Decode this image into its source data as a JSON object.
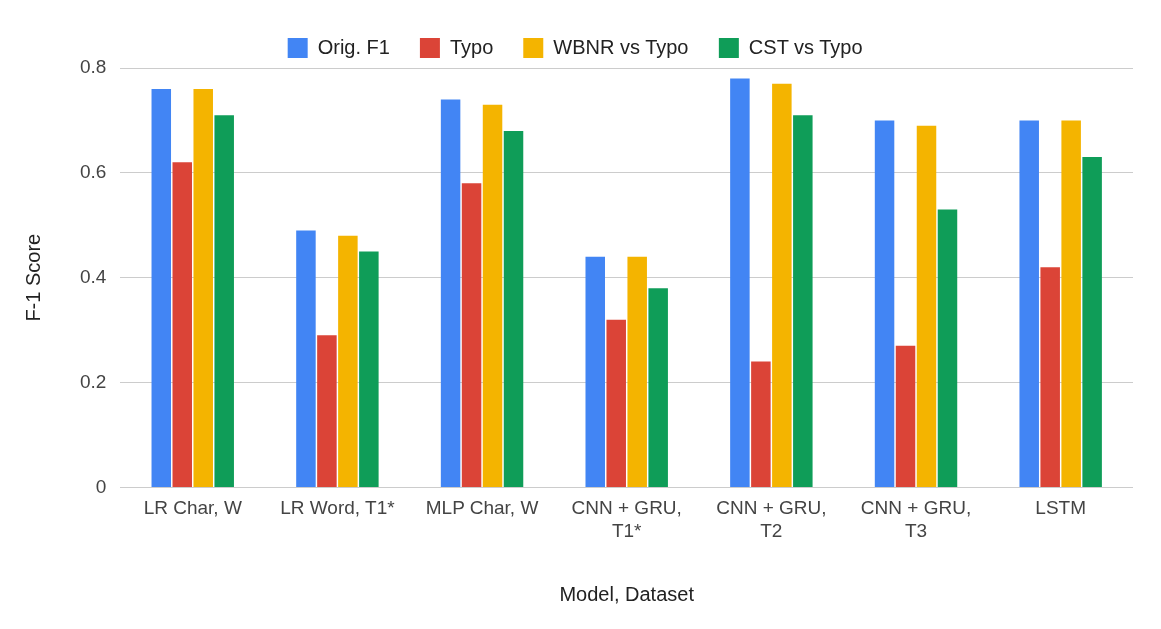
{
  "chart_data": {
    "type": "bar",
    "xlabel": "Model, Dataset",
    "ylabel": "F-1 Score",
    "categories": [
      "LR Char, W",
      "LR Word, T1*",
      "MLP Char, W",
      "CNN + GRU, T1*",
      "CNN + GRU, T2",
      "CNN + GRU, T3",
      "LSTM"
    ],
    "series": [
      {
        "name": "Orig. F1",
        "color": "#4285f4",
        "values": [
          0.76,
          0.49,
          0.74,
          0.44,
          0.78,
          0.7,
          0.7
        ]
      },
      {
        "name": "Typo",
        "color": "#db4437",
        "values": [
          0.62,
          0.29,
          0.58,
          0.32,
          0.24,
          0.27,
          0.42
        ]
      },
      {
        "name": "WBNR vs Typo",
        "color": "#f4b400",
        "values": [
          0.76,
          0.48,
          0.73,
          0.44,
          0.77,
          0.69,
          0.7
        ]
      },
      {
        "name": "CST vs Typo",
        "color": "#0f9d58",
        "values": [
          0.71,
          0.45,
          0.68,
          0.38,
          0.71,
          0.53,
          0.63
        ]
      }
    ],
    "ylim": [
      0,
      0.8
    ],
    "yticks": [
      0,
      0.2,
      0.4,
      0.6,
      0.8
    ],
    "grid": "y",
    "legend": "top"
  }
}
